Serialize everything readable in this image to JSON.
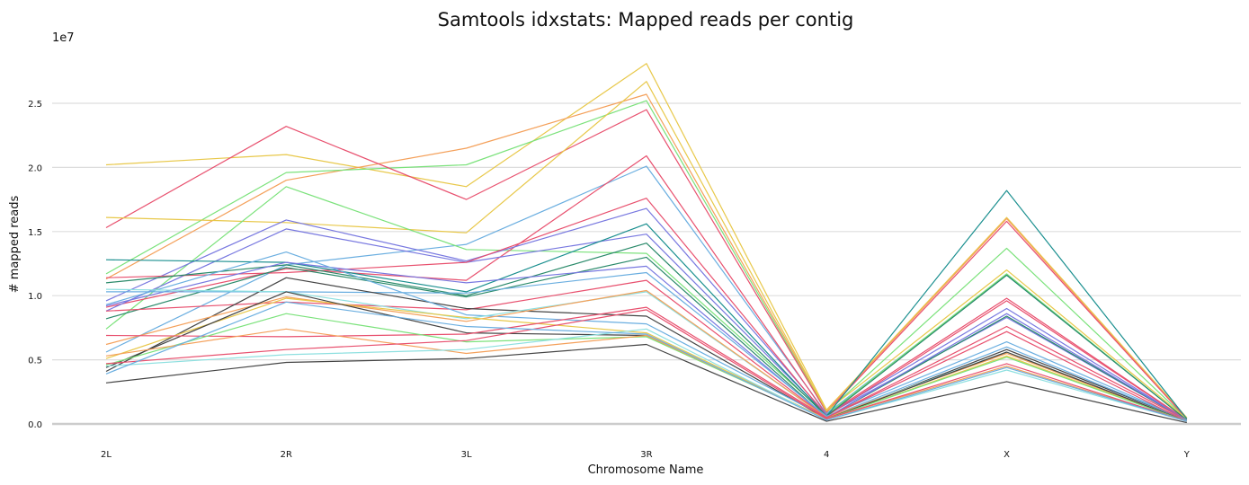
{
  "chart_data": {
    "type": "line",
    "title": "Samtools idxstats: Mapped reads per contig",
    "xlabel": "Chromosome Name",
    "ylabel": "# mapped reads",
    "y_offset_label": "1e7",
    "categories": [
      "2L",
      "2R",
      "3L",
      "3R",
      "4",
      "X",
      "Y"
    ],
    "ylim": [
      0,
      30000000
    ],
    "yticks": [
      0,
      5000000,
      10000000,
      15000000,
      20000000,
      25000000
    ],
    "ytick_labels": [
      "0.0",
      "0.5",
      "1.0",
      "1.5",
      "2.0",
      "2.5"
    ],
    "grid": "horizontal",
    "series": [
      {
        "color": "#e8c84a",
        "values": [
          20200000,
          21000000,
          18500000,
          28100000,
          1100000,
          16100000,
          500000
        ]
      },
      {
        "color": "#f4a05a",
        "values": [
          11300000,
          19000000,
          21500000,
          25700000,
          1000000,
          16000000,
          400000
        ]
      },
      {
        "color": "#7be27b",
        "values": [
          11700000,
          19600000,
          20200000,
          25200000,
          900000,
          13700000,
          400000
        ]
      },
      {
        "color": "#e8506e",
        "values": [
          15300000,
          23200000,
          17500000,
          24500000,
          900000,
          15800000,
          400000
        ]
      },
      {
        "color": "#e8c84a",
        "values": [
          16100000,
          15700000,
          14900000,
          26700000,
          1000000,
          12000000,
          400000
        ]
      },
      {
        "color": "#6aaee0",
        "values": [
          5600000,
          12400000,
          14000000,
          20100000,
          800000,
          11600000,
          300000
        ]
      },
      {
        "color": "#7be27b",
        "values": [
          7400000,
          18500000,
          13600000,
          13300000,
          700000,
          11700000,
          300000
        ]
      },
      {
        "color": "#e8506e",
        "values": [
          9100000,
          12100000,
          11200000,
          20900000,
          700000,
          9800000,
          300000
        ]
      },
      {
        "color": "#7878e0",
        "values": [
          9600000,
          15900000,
          12700000,
          16800000,
          700000,
          9000000,
          300000
        ]
      },
      {
        "color": "#7878e0",
        "values": [
          8800000,
          15200000,
          12600000,
          14800000,
          700000,
          8300000,
          300000
        ]
      },
      {
        "color": "#e8506e",
        "values": [
          11400000,
          11800000,
          12600000,
          17600000,
          600000,
          9600000,
          300000
        ]
      },
      {
        "color": "#1a8f8f",
        "values": [
          12800000,
          12600000,
          10300000,
          15600000,
          600000,
          18200000,
          400000
        ]
      },
      {
        "color": "#2a8a6a",
        "values": [
          11000000,
          12400000,
          10000000,
          14100000,
          600000,
          11600000,
          300000
        ]
      },
      {
        "color": "#2a8a6a",
        "values": [
          8200000,
          12200000,
          9900000,
          13000000,
          500000,
          8400000,
          300000
        ]
      },
      {
        "color": "#7878e0",
        "values": [
          9200000,
          12600000,
          11000000,
          12300000,
          500000,
          8600000,
          300000
        ]
      },
      {
        "color": "#6aaee0",
        "values": [
          10300000,
          10300000,
          10200000,
          11800000,
          600000,
          6400000,
          300000
        ]
      },
      {
        "color": "#e8506e",
        "values": [
          8800000,
          9500000,
          8900000,
          11200000,
          500000,
          7600000,
          300000
        ]
      },
      {
        "color": "#444444",
        "values": [
          4100000,
          11400000,
          9000000,
          8400000,
          400000,
          5800000,
          300000
        ]
      },
      {
        "color": "#6aaee0",
        "values": [
          9300000,
          13400000,
          8500000,
          7800000,
          500000,
          6000000,
          300000
        ]
      },
      {
        "color": "#8ee0e0",
        "values": [
          10500000,
          10300000,
          8200000,
          10300000,
          500000,
          5600000,
          200000
        ]
      },
      {
        "color": "#f4a05a",
        "values": [
          6200000,
          9900000,
          8000000,
          10400000,
          500000,
          5500000,
          200000
        ]
      },
      {
        "color": "#e8c84a",
        "values": [
          5100000,
          9800000,
          8300000,
          7100000,
          400000,
          5300000,
          200000
        ]
      },
      {
        "color": "#444444",
        "values": [
          4400000,
          10300000,
          7100000,
          6900000,
          400000,
          5600000,
          200000
        ]
      },
      {
        "color": "#e8506e",
        "values": [
          6900000,
          6800000,
          7000000,
          9100000,
          500000,
          7200000,
          200000
        ]
      },
      {
        "color": "#7be27b",
        "values": [
          4600000,
          8600000,
          6400000,
          6800000,
          400000,
          5200000,
          200000
        ]
      },
      {
        "color": "#f4a05a",
        "values": [
          5300000,
          7400000,
          5500000,
          6900000,
          400000,
          4500000,
          200000
        ]
      },
      {
        "color": "#e8506e",
        "values": [
          4700000,
          5800000,
          6500000,
          8900000,
          400000,
          4700000,
          200000
        ]
      },
      {
        "color": "#8ee0e0",
        "values": [
          4500000,
          5400000,
          5800000,
          7400000,
          300000,
          4200000,
          200000
        ]
      },
      {
        "color": "#6aaee0",
        "values": [
          3900000,
          9500000,
          7600000,
          7000000,
          300000,
          4400000,
          200000
        ]
      },
      {
        "color": "#444444",
        "values": [
          3200000,
          4800000,
          5100000,
          6200000,
          200000,
          3300000,
          100000
        ]
      }
    ]
  }
}
